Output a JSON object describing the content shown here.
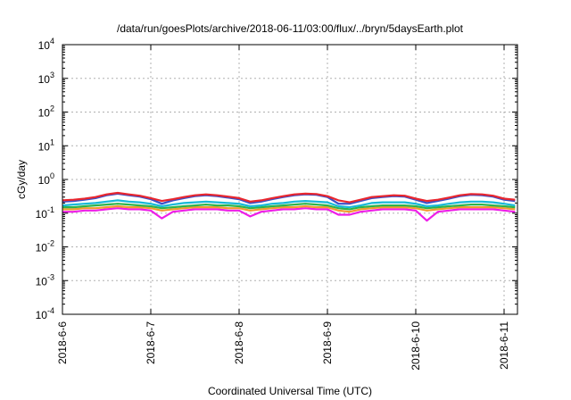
{
  "chart_data": {
    "type": "line",
    "title": "/data/run/goesPlots/archive/2018-06-11/03:00/flux/../bryn/5daysEarth.plot",
    "xlabel": "Coordinated Universal Time (UTC)",
    "ylabel": "cGy/day",
    "y_scale": "log",
    "ylim": [
      0.0001,
      10000
    ],
    "xlim": [
      "2018-06-06 00:00",
      "2018-06-11 03:00"
    ],
    "grid": true,
    "legend": "none",
    "y_ticks": [
      {
        "value": 0.0001,
        "base": "10",
        "exp": "-4"
      },
      {
        "value": 0.001,
        "base": "10",
        "exp": "-3"
      },
      {
        "value": 0.01,
        "base": "10",
        "exp": "-2"
      },
      {
        "value": 0.1,
        "base": "10",
        "exp": "-1"
      },
      {
        "value": 1,
        "base": "10",
        "exp": "0"
      },
      {
        "value": 10,
        "base": "10",
        "exp": "1"
      },
      {
        "value": 100,
        "base": "10",
        "exp": "2"
      },
      {
        "value": 1000,
        "base": "10",
        "exp": "3"
      },
      {
        "value": 10000,
        "base": "10",
        "exp": "4"
      }
    ],
    "x_ticks": [
      "2018-6-6",
      "2018-6-7",
      "2018-6-8",
      "2018-6-9",
      "2018-6-10",
      "2018-6-11"
    ],
    "x": [
      "2018-06-06 00:00",
      "2018-06-06 03:00",
      "2018-06-06 06:00",
      "2018-06-06 09:00",
      "2018-06-06 12:00",
      "2018-06-06 15:00",
      "2018-06-06 18:00",
      "2018-06-06 21:00",
      "2018-06-07 00:00",
      "2018-06-07 03:00",
      "2018-06-07 06:00",
      "2018-06-07 09:00",
      "2018-06-07 12:00",
      "2018-06-07 15:00",
      "2018-06-07 18:00",
      "2018-06-07 21:00",
      "2018-06-08 00:00",
      "2018-06-08 03:00",
      "2018-06-08 06:00",
      "2018-06-08 09:00",
      "2018-06-08 12:00",
      "2018-06-08 15:00",
      "2018-06-08 18:00",
      "2018-06-08 21:00",
      "2018-06-09 00:00",
      "2018-06-09 03:00",
      "2018-06-09 06:00",
      "2018-06-09 09:00",
      "2018-06-09 12:00",
      "2018-06-09 15:00",
      "2018-06-09 18:00",
      "2018-06-09 21:00",
      "2018-06-10 00:00",
      "2018-06-10 03:00",
      "2018-06-10 06:00",
      "2018-06-10 09:00",
      "2018-06-10 12:00",
      "2018-06-10 15:00",
      "2018-06-10 18:00",
      "2018-06-10 21:00",
      "2018-06-11 00:00",
      "2018-06-11 03:00"
    ],
    "series": [
      {
        "color": "#e8262e",
        "values": [
          0.24,
          0.25,
          0.27,
          0.3,
          0.36,
          0.4,
          0.36,
          0.33,
          0.28,
          0.23,
          0.26,
          0.3,
          0.34,
          0.36,
          0.34,
          0.31,
          0.28,
          0.22,
          0.24,
          0.28,
          0.32,
          0.36,
          0.38,
          0.37,
          0.32,
          0.24,
          0.21,
          0.25,
          0.3,
          0.32,
          0.34,
          0.33,
          0.27,
          0.23,
          0.25,
          0.29,
          0.34,
          0.37,
          0.36,
          0.33,
          0.27,
          0.25
        ]
      },
      {
        "color": "#3a4fc8",
        "values": [
          0.22,
          0.23,
          0.25,
          0.28,
          0.34,
          0.38,
          0.34,
          0.31,
          0.26,
          0.19,
          0.24,
          0.28,
          0.32,
          0.34,
          0.32,
          0.29,
          0.26,
          0.2,
          0.22,
          0.26,
          0.3,
          0.34,
          0.36,
          0.35,
          0.3,
          0.19,
          0.19,
          0.23,
          0.28,
          0.3,
          0.32,
          0.31,
          0.25,
          0.2,
          0.23,
          0.27,
          0.32,
          0.35,
          0.34,
          0.31,
          0.25,
          0.23
        ]
      },
      {
        "color": "#16b8d8",
        "values": [
          0.17,
          0.18,
          0.19,
          0.2,
          0.22,
          0.24,
          0.22,
          0.21,
          0.19,
          0.16,
          0.18,
          0.2,
          0.21,
          0.22,
          0.21,
          0.2,
          0.19,
          0.16,
          0.17,
          0.19,
          0.2,
          0.22,
          0.23,
          0.22,
          0.21,
          0.16,
          0.15,
          0.17,
          0.2,
          0.21,
          0.21,
          0.21,
          0.19,
          0.16,
          0.17,
          0.19,
          0.21,
          0.22,
          0.22,
          0.21,
          0.19,
          0.17
        ]
      },
      {
        "color": "#2db34a",
        "values": [
          0.15,
          0.15,
          0.16,
          0.17,
          0.18,
          0.19,
          0.18,
          0.17,
          0.16,
          0.14,
          0.15,
          0.16,
          0.17,
          0.18,
          0.17,
          0.17,
          0.16,
          0.14,
          0.15,
          0.16,
          0.17,
          0.18,
          0.19,
          0.18,
          0.17,
          0.14,
          0.13,
          0.15,
          0.16,
          0.17,
          0.17,
          0.17,
          0.16,
          0.14,
          0.15,
          0.16,
          0.17,
          0.18,
          0.18,
          0.17,
          0.16,
          0.15
        ]
      },
      {
        "color": "#f29a2e",
        "values": [
          0.13,
          0.13,
          0.14,
          0.14,
          0.15,
          0.16,
          0.15,
          0.15,
          0.14,
          0.12,
          0.13,
          0.14,
          0.15,
          0.15,
          0.15,
          0.14,
          0.14,
          0.12,
          0.13,
          0.14,
          0.15,
          0.15,
          0.16,
          0.15,
          0.15,
          0.12,
          0.11,
          0.13,
          0.14,
          0.15,
          0.15,
          0.15,
          0.14,
          0.12,
          0.13,
          0.14,
          0.15,
          0.15,
          0.15,
          0.15,
          0.14,
          0.13
        ]
      },
      {
        "color": "#ee1ee8",
        "values": [
          0.11,
          0.11,
          0.12,
          0.12,
          0.13,
          0.14,
          0.13,
          0.13,
          0.12,
          0.07,
          0.11,
          0.12,
          0.13,
          0.13,
          0.13,
          0.12,
          0.12,
          0.08,
          0.11,
          0.12,
          0.13,
          0.13,
          0.14,
          0.13,
          0.13,
          0.09,
          0.09,
          0.11,
          0.12,
          0.13,
          0.13,
          0.13,
          0.12,
          0.06,
          0.11,
          0.12,
          0.13,
          0.13,
          0.13,
          0.13,
          0.12,
          0.11
        ]
      }
    ]
  }
}
